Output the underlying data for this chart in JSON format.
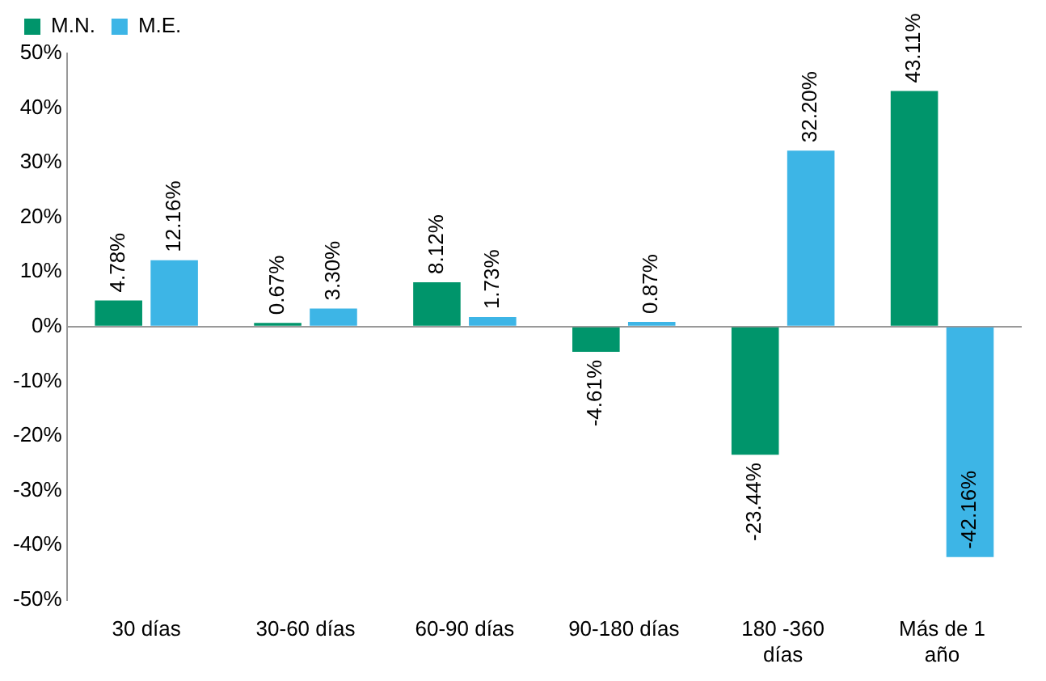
{
  "chart_data": {
    "type": "bar",
    "categories": [
      "30 días",
      "30-60 días",
      "60-90 días",
      "90-180 días",
      "180 -360 días",
      "Más de 1 año"
    ],
    "series": [
      {
        "name": "M.N.",
        "color": "#00956b",
        "values": [
          4.78,
          0.67,
          8.12,
          -4.61,
          -23.44,
          43.11
        ],
        "value_labels": [
          "4.78%",
          "0.67%",
          "8.12%",
          "-4.61%",
          "-23.44%",
          "43.11%"
        ]
      },
      {
        "name": "M.E.",
        "color": "#3db5e6",
        "values": [
          12.16,
          3.3,
          1.73,
          0.87,
          32.2,
          -42.16
        ],
        "value_labels": [
          "12.16%",
          "3.30%",
          "1.73%",
          "0.87%",
          "32.20%",
          "-42.16%"
        ]
      }
    ],
    "ylim": [
      -50,
      50
    ],
    "yticks": [
      {
        "value": -50,
        "label": "-50%"
      },
      {
        "value": -40,
        "label": "-40%"
      },
      {
        "value": -30,
        "label": "-30%"
      },
      {
        "value": -20,
        "label": "-20%"
      },
      {
        "value": -10,
        "label": "-10%"
      },
      {
        "value": 0,
        "label": "0%"
      },
      {
        "value": 10,
        "label": "10%"
      },
      {
        "value": 20,
        "label": "20%"
      },
      {
        "value": 30,
        "label": "30%"
      },
      {
        "value": 40,
        "label": "40%"
      },
      {
        "value": 50,
        "label": "50%"
      }
    ],
    "legend": "top left"
  }
}
